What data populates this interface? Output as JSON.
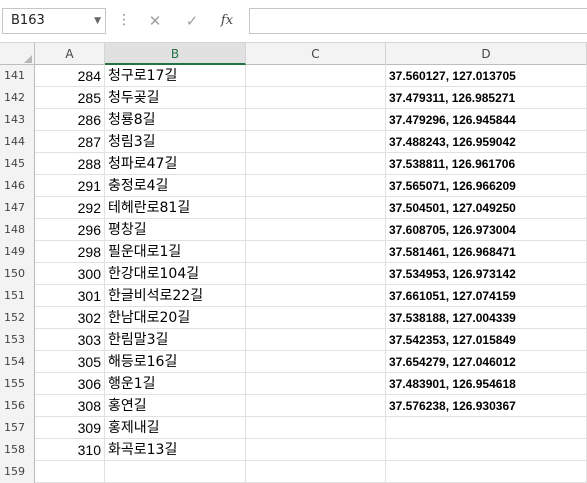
{
  "formula_bar": {
    "name_box": "B163",
    "cancel_icon": "✕",
    "enter_icon": "✓",
    "fx_label": "fx",
    "formula": ""
  },
  "columns": [
    "A",
    "B",
    "C",
    "D"
  ],
  "selected_column": "B",
  "rows": [
    {
      "num": "141",
      "a": "284",
      "b": "청구로17길",
      "d": "37.560127, 127.013705"
    },
    {
      "num": "142",
      "a": "285",
      "b": "청두곶길",
      "d": "37.479311, 126.985271"
    },
    {
      "num": "143",
      "a": "286",
      "b": "청룡8길",
      "d": "37.479296, 126.945844"
    },
    {
      "num": "144",
      "a": "287",
      "b": "청림3길",
      "d": "37.488243, 126.959042"
    },
    {
      "num": "145",
      "a": "288",
      "b": "청파로47길",
      "d": "37.538811, 126.961706"
    },
    {
      "num": "146",
      "a": "291",
      "b": "충정로4길",
      "d": "37.565071, 126.966209"
    },
    {
      "num": "147",
      "a": "292",
      "b": "테헤란로81길",
      "d": "37.504501, 127.049250"
    },
    {
      "num": "148",
      "a": "296",
      "b": "평창길",
      "d": "37.608705, 126.973004"
    },
    {
      "num": "149",
      "a": "298",
      "b": "필운대로1길",
      "d": "37.581461, 126.968471"
    },
    {
      "num": "150",
      "a": "300",
      "b": "한강대로104길",
      "d": "37.534953, 126.973142"
    },
    {
      "num": "151",
      "a": "301",
      "b": "한글비석로22길",
      "d": "37.661051, 127.074159"
    },
    {
      "num": "152",
      "a": "302",
      "b": "한남대로20길",
      "d": "37.538188, 127.004339"
    },
    {
      "num": "153",
      "a": "303",
      "b": "한림말3길",
      "d": "37.542353, 127.015849"
    },
    {
      "num": "154",
      "a": "305",
      "b": "해등로16길",
      "d": "37.654279, 127.046012"
    },
    {
      "num": "155",
      "a": "306",
      "b": "행운1길",
      "d": "37.483901, 126.954618"
    },
    {
      "num": "156",
      "a": "308",
      "b": "홍연길",
      "d": "37.576238, 126.930367"
    },
    {
      "num": "157",
      "a": "309",
      "b": "홍제내길",
      "d": ""
    },
    {
      "num": "158",
      "a": "310",
      "b": "화곡로13길",
      "d": ""
    },
    {
      "num": "159",
      "a": "",
      "b": "",
      "d": ""
    }
  ],
  "colors": {
    "accent": "#217346",
    "header_bg": "#f3f3f3",
    "gridline": "#e1e1e1"
  }
}
